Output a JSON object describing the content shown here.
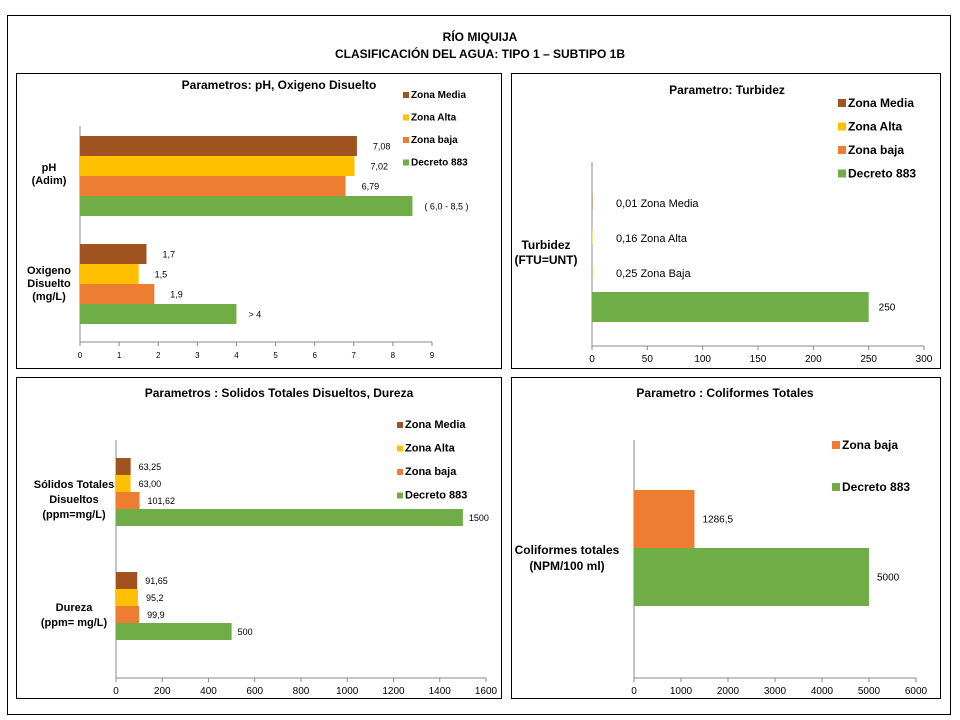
{
  "header": {
    "title_line1": "RÍO MIQUIJA",
    "title_line2": "CLASIFICACIÓN DEL AGUA: TIPO 1 – SUBTIPO 1B"
  },
  "colors": {
    "zona_media": "#A0521F",
    "zona_alta": "#FFC000",
    "zona_baja": "#ED7D31",
    "decreto": "#70AD47"
  },
  "chart_data": [
    {
      "type": "bar",
      "orientation": "horizontal",
      "title": "Parametros: pH, Oxigeno Disuelto",
      "xlim": [
        0,
        9
      ],
      "xticks": [
        "0",
        "1",
        "2",
        "3",
        "4",
        "5",
        "6",
        "7",
        "8",
        "9"
      ],
      "legend": [
        "Zona Media",
        "Zona Alta",
        "Zona baja",
        "Decreto 883"
      ],
      "groups": [
        {
          "label": [
            "pH",
            "(Adim)"
          ],
          "bars": [
            {
              "series": "Zona Media",
              "value": 7.08,
              "label": "7,08"
            },
            {
              "series": "Zona Alta",
              "value": 7.02,
              "label": "7,02"
            },
            {
              "series": "Zona baja",
              "value": 6.79,
              "label": "6,79"
            },
            {
              "series": "Decreto 883",
              "value": 8.5,
              "label": "( 6,0 - 8,5 )"
            }
          ]
        },
        {
          "label": [
            "Oxigeno",
            "Disuelto",
            "(mg/L)"
          ],
          "bars": [
            {
              "series": "Zona Media",
              "value": 1.7,
              "label": "1,7"
            },
            {
              "series": "Zona Alta",
              "value": 1.5,
              "label": "1,5"
            },
            {
              "series": "Zona baja",
              "value": 1.9,
              "label": "1,9"
            },
            {
              "series": "Decreto 883",
              "value": 4,
              "label": "> 4"
            }
          ]
        }
      ]
    },
    {
      "type": "bar",
      "orientation": "horizontal",
      "title": "Parametro: Turbidez",
      "xlim": [
        0,
        300
      ],
      "xticks": [
        "0",
        "50",
        "100",
        "150",
        "200",
        "250",
        "300"
      ],
      "legend": [
        "Zona Media",
        "Zona Alta",
        "Zona baja",
        "Decreto 883"
      ],
      "groups": [
        {
          "label": [
            "Turbidez",
            "(FTU=UNT)"
          ],
          "bars": [
            {
              "series": "Zona Media",
              "value": 0.01,
              "label": "0,01 Zona Media"
            },
            {
              "series": "Zona Alta",
              "value": 0.16,
              "label": "0,16 Zona Alta"
            },
            {
              "series": "Zona baja",
              "value": 0.25,
              "label": "0,25 Zona Baja"
            },
            {
              "series": "Decreto 883",
              "value": 250,
              "label": "250"
            }
          ]
        }
      ]
    },
    {
      "type": "bar",
      "orientation": "horizontal",
      "title": "Parametros : Solidos Totales Disueltos, Dureza",
      "xlim": [
        0,
        1600
      ],
      "xticks": [
        "0",
        "200",
        "400",
        "600",
        "800",
        "1000",
        "1200",
        "1400",
        "1600"
      ],
      "legend": [
        "Zona Media",
        "Zona Alta",
        "Zona baja",
        "Decreto 883"
      ],
      "groups": [
        {
          "label": [
            "Sólidos Totales",
            "Disueltos",
            "(ppm=mg/L)"
          ],
          "bars": [
            {
              "series": "Zona Media",
              "value": 63.25,
              "label": "63,25"
            },
            {
              "series": "Zona Alta",
              "value": 63.0,
              "label": "63,00"
            },
            {
              "series": "Zona baja",
              "value": 101.62,
              "label": "101,62"
            },
            {
              "series": "Decreto 883",
              "value": 1500,
              "label": "1500"
            }
          ]
        },
        {
          "label": [
            "Dureza",
            "(ppm= mg/L)"
          ],
          "bars": [
            {
              "series": "Zona Media",
              "value": 91.65,
              "label": "91,65"
            },
            {
              "series": "Zona Alta",
              "value": 95.2,
              "label": "95,2"
            },
            {
              "series": "Zona baja",
              "value": 99.9,
              "label": "99,9"
            },
            {
              "series": "Decreto 883",
              "value": 500,
              "label": "500"
            }
          ]
        }
      ]
    },
    {
      "type": "bar",
      "orientation": "horizontal",
      "title": "Parametro : Coliformes Totales",
      "xlim": [
        0,
        6000
      ],
      "xticks": [
        "0",
        "1000",
        "2000",
        "3000",
        "4000",
        "5000",
        "6000"
      ],
      "legend": [
        "Zona baja",
        "Decreto 883"
      ],
      "groups": [
        {
          "label": [
            "Coliformes totales",
            "(NPM/100 ml)"
          ],
          "bars": [
            {
              "series": "Zona baja",
              "value": 1286.5,
              "label": "1286,5"
            },
            {
              "series": "Decreto 883",
              "value": 5000,
              "label": "5000"
            }
          ]
        }
      ]
    }
  ]
}
